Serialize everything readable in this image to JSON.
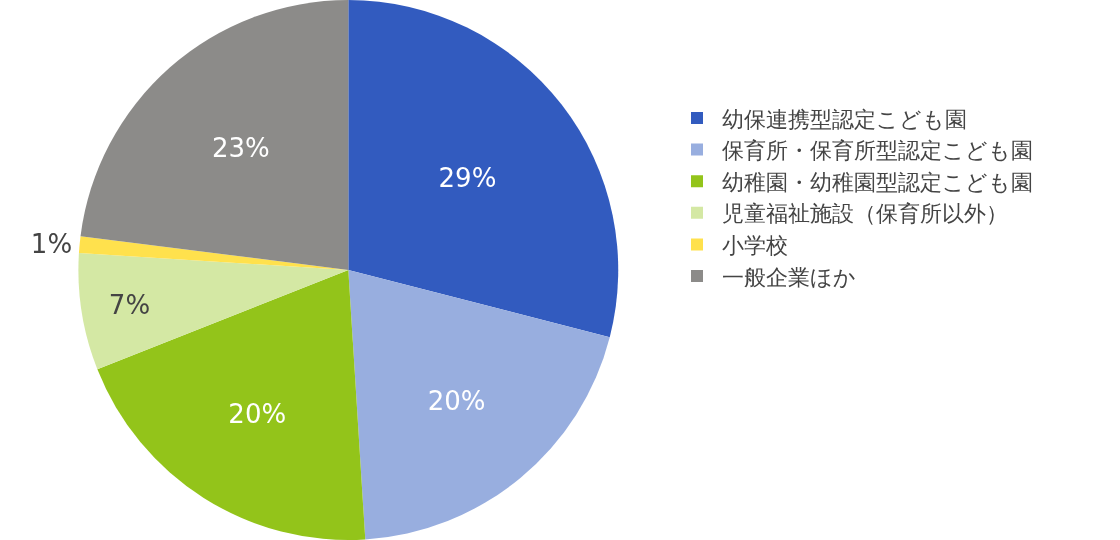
{
  "chart_data": {
    "type": "pie",
    "categories": [
      "幼保連携型認定こども園",
      "保育所・保育所型認定こども園",
      "幼稚園・幼稚園型認定こども園",
      "児童福祉施設（保育所以外）",
      "小学校",
      "一般企業ほか"
    ],
    "values": [
      29,
      20,
      20,
      7,
      1,
      23
    ],
    "colors": [
      "#325bbf",
      "#98aedf",
      "#93c41a",
      "#d4e8a4",
      "#ffe14d",
      "#8c8b89"
    ],
    "value_labels": [
      "29%",
      "20%",
      "20%",
      "7%",
      "1%",
      "23%"
    ],
    "legend": "right"
  }
}
